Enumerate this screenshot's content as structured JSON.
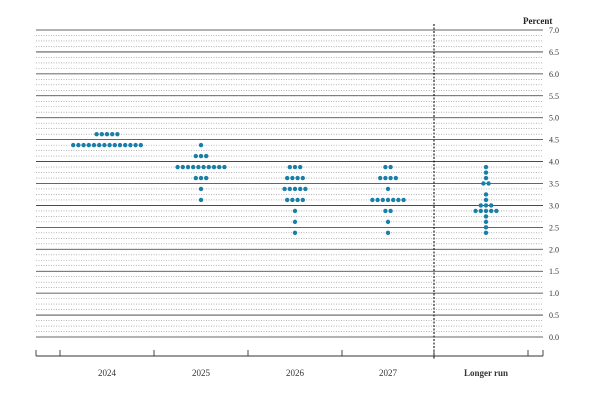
{
  "chart_data": {
    "type": "scatter",
    "unit_label": "Percent",
    "ylim": [
      0,
      7
    ],
    "y_ticks": [
      "0.0",
      "0.5",
      "1.0",
      "1.5",
      "2.0",
      "2.5",
      "3.0",
      "3.5",
      "4.0",
      "4.5",
      "5.0",
      "5.5",
      "6.0",
      "6.5",
      "7.0"
    ],
    "categories": [
      "2024",
      "2025",
      "2026",
      "2027",
      "Longer run"
    ],
    "dot_color": "#1a7fa8",
    "grid": "dotted at every 0.125, solid at every 0.5",
    "divider_before": "Longer run",
    "dots": [
      {
        "category": "2024",
        "rows": [
          {
            "y": 4.625,
            "count": 5
          },
          {
            "y": 4.375,
            "count": 14
          }
        ]
      },
      {
        "category": "2025",
        "rows": [
          {
            "y": 4.375,
            "count": 1
          },
          {
            "y": 4.125,
            "count": 3
          },
          {
            "y": 3.875,
            "count": 10
          },
          {
            "y": 3.625,
            "count": 3
          },
          {
            "y": 3.375,
            "count": 1
          },
          {
            "y": 3.125,
            "count": 1
          }
        ]
      },
      {
        "category": "2026",
        "rows": [
          {
            "y": 3.875,
            "count": 3
          },
          {
            "y": 3.625,
            "count": 4
          },
          {
            "y": 3.375,
            "count": 5
          },
          {
            "y": 3.125,
            "count": 4
          },
          {
            "y": 2.875,
            "count": 1
          },
          {
            "y": 2.625,
            "count": 1
          },
          {
            "y": 2.375,
            "count": 1
          }
        ]
      },
      {
        "category": "2027",
        "rows": [
          {
            "y": 3.875,
            "count": 2
          },
          {
            "y": 3.625,
            "count": 4
          },
          {
            "y": 3.375,
            "count": 1
          },
          {
            "y": 3.125,
            "count": 7
          },
          {
            "y": 2.875,
            "count": 2
          },
          {
            "y": 2.625,
            "count": 1
          },
          {
            "y": 2.375,
            "count": 1
          }
        ]
      },
      {
        "category": "Longer run",
        "rows": [
          {
            "y": 3.875,
            "count": 1
          },
          {
            "y": 3.75,
            "count": 1
          },
          {
            "y": 3.625,
            "count": 1
          },
          {
            "y": 3.5,
            "count": 2
          },
          {
            "y": 3.25,
            "count": 1
          },
          {
            "y": 3.125,
            "count": 1
          },
          {
            "y": 3.0,
            "count": 3
          },
          {
            "y": 2.875,
            "count": 5
          },
          {
            "y": 2.75,
            "count": 1
          },
          {
            "y": 2.625,
            "count": 1
          },
          {
            "y": 2.5,
            "count": 1
          },
          {
            "y": 2.375,
            "count": 1
          }
        ]
      }
    ]
  }
}
